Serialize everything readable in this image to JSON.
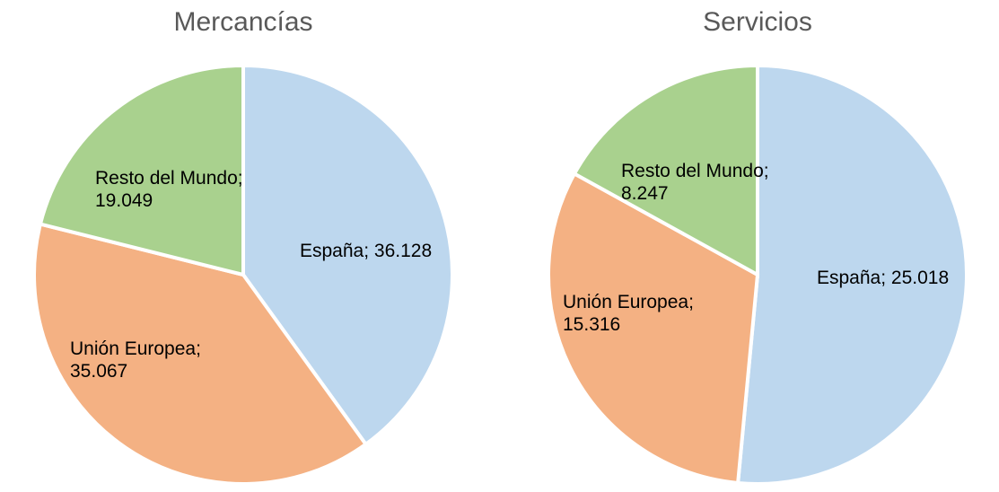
{
  "chart_data": [
    {
      "type": "pie",
      "title": "Mercancías",
      "start": "top",
      "direction": "clockwise",
      "slices": [
        {
          "label": "España",
          "value": 36.128,
          "display": "España; 36.128",
          "color": "#BDD7EE"
        },
        {
          "label": "Unión Europea",
          "value": 35.067,
          "display": "Unión Europea;\n35.067",
          "color": "#F4B183"
        },
        {
          "label": "Resto del Mundo",
          "value": 19.049,
          "display": "Resto del Mundo;\n19.049",
          "color": "#A9D18E"
        }
      ]
    },
    {
      "type": "pie",
      "title": "Servicios",
      "start": "top",
      "direction": "clockwise",
      "slices": [
        {
          "label": "España",
          "value": 25.018,
          "display": "España; 25.018",
          "color": "#BDD7EE"
        },
        {
          "label": "Unión Europea",
          "value": 15.316,
          "display": "Unión Europea;\n15.316",
          "color": "#F4B183"
        },
        {
          "label": "Resto del Mundo",
          "value": 8.247,
          "display": "Resto del Mundo;\n8.247",
          "color": "#A9D18E"
        }
      ]
    }
  ]
}
